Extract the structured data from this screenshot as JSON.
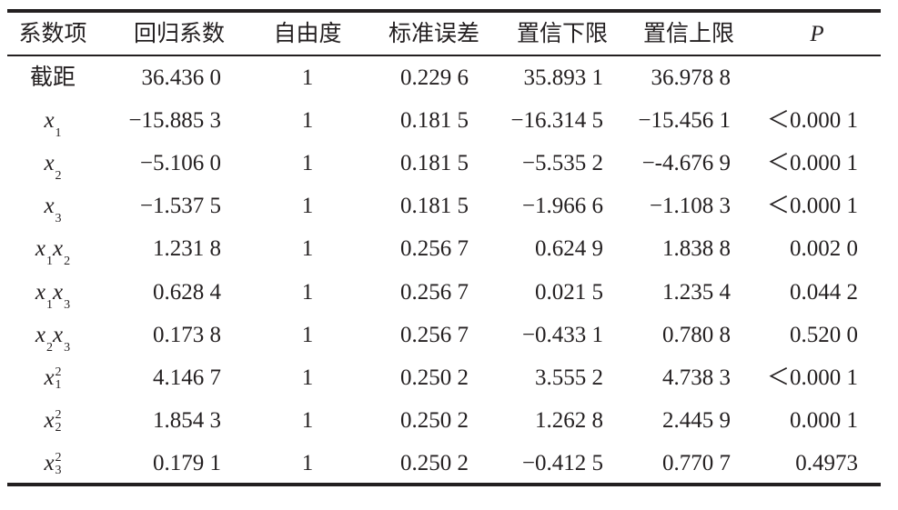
{
  "table": {
    "header": [
      "系数项",
      "回归系数",
      "自由度",
      "标准误差",
      "置信下限",
      "置信上限",
      "P"
    ],
    "rows": [
      {
        "term": {
          "text": "截距"
        },
        "cells": [
          "36.436 0",
          "1",
          "0.229 6",
          "35.893 1",
          "36.978 8",
          null
        ]
      },
      {
        "term": {
          "factors": [
            {
              "var": "x",
              "sub": "1"
            }
          ]
        },
        "cells": [
          "−15.885 3",
          "1",
          "0.181 5",
          "−16.314 5",
          "−15.456 1",
          "＜0.000 1"
        ]
      },
      {
        "term": {
          "factors": [
            {
              "var": "x",
              "sub": "2"
            }
          ]
        },
        "cells": [
          "−5.106 0",
          "1",
          "0.181 5",
          "−5.535 2",
          "−-4.676 9",
          "＜0.000 1"
        ]
      },
      {
        "term": {
          "factors": [
            {
              "var": "x",
              "sub": "3"
            }
          ]
        },
        "cells": [
          "−1.537 5",
          "1",
          "0.181 5",
          "−1.966 6",
          "−1.108 3",
          "＜0.000 1"
        ]
      },
      {
        "term": {
          "factors": [
            {
              "var": "x",
              "sub": "1"
            },
            {
              "var": "x",
              "sub": "2"
            }
          ]
        },
        "cells": [
          "1.231 8",
          "1",
          "0.256 7",
          "0.624 9",
          "1.838 8",
          "0.002 0"
        ]
      },
      {
        "term": {
          "factors": [
            {
              "var": "x",
              "sub": "1"
            },
            {
              "var": "x",
              "sub": "3"
            }
          ]
        },
        "cells": [
          "0.628 4",
          "1",
          "0.256 7",
          "0.021 5",
          "1.235 4",
          "0.044 2"
        ]
      },
      {
        "term": {
          "factors": [
            {
              "var": "x",
              "sub": "2"
            },
            {
              "var": "x",
              "sub": "3"
            }
          ]
        },
        "cells": [
          "0.173 8",
          "1",
          "0.256 7",
          "−0.433 1",
          "0.780 8",
          "0.520 0"
        ]
      },
      {
        "term": {
          "factors": [
            {
              "var": "x",
              "sub": "1",
              "sup": "2"
            }
          ]
        },
        "cells": [
          "4.146 7",
          "1",
          "0.250 2",
          "3.555 2",
          "4.738 3",
          "＜0.000 1"
        ]
      },
      {
        "term": {
          "factors": [
            {
              "var": "x",
              "sub": "2",
              "sup": "2"
            }
          ]
        },
        "cells": [
          "1.854 3",
          "1",
          "0.250 2",
          "1.262 8",
          "2.445 9",
          "0.000 1"
        ]
      },
      {
        "term": {
          "factors": [
            {
              "var": "x",
              "sub": "3",
              "sup": "2"
            }
          ]
        },
        "cells": [
          "0.179 1",
          "1",
          "0.250 2",
          "−0.412 5",
          "0.770 7",
          "0.4973"
        ]
      }
    ]
  }
}
